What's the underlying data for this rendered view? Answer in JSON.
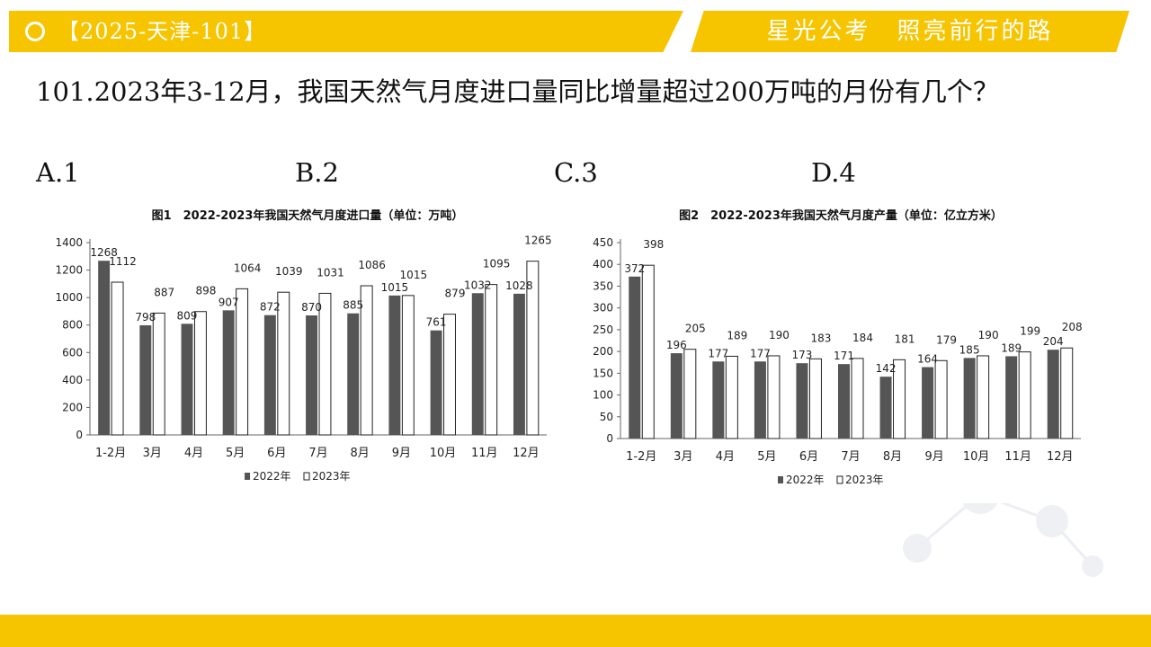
{
  "header": {
    "tag": "【2025-天津-101】",
    "slogan": "星光公考　照亮前行的路"
  },
  "question": {
    "text": "101.2023年3-12月，我国天然气月度进口量同比增量超过200万吨的月份有几个？",
    "options": [
      "A.1",
      "B.2",
      "C.3",
      "D.4"
    ]
  },
  "colors": {
    "accent": "#f7c400",
    "bar_2022": "#555555",
    "bar_2023": "#ffffff"
  },
  "chart_data": [
    {
      "type": "bar",
      "title": "图1　2022-2023年我国天然气月度进口量（单位：万吨）",
      "categories": [
        "1-2月",
        "3月",
        "4月",
        "5月",
        "6月",
        "7月",
        "8月",
        "9月",
        "10月",
        "11月",
        "12月"
      ],
      "series": [
        {
          "name": "2022年",
          "values": [
            1268,
            798,
            809,
            907,
            872,
            870,
            885,
            1015,
            761,
            1032,
            1028
          ]
        },
        {
          "name": "2023年",
          "values": [
            1112,
            887,
            898,
            1064,
            1039,
            1031,
            1086,
            1015,
            879,
            1095,
            1265
          ]
        }
      ],
      "yticks": [
        0,
        200,
        400,
        600,
        800,
        1000,
        1200,
        1400
      ],
      "ylim": [
        0,
        1400
      ],
      "legend": "bottom",
      "grid": false
    },
    {
      "type": "bar",
      "title": "图2　2022-2023年我国天然气月度产量（单位：亿立方米）",
      "categories": [
        "1-2月",
        "3月",
        "4月",
        "5月",
        "6月",
        "7月",
        "8月",
        "9月",
        "10月",
        "11月",
        "12月"
      ],
      "series": [
        {
          "name": "2022年",
          "values": [
            372,
            196,
            177,
            177,
            173,
            171,
            142,
            164,
            185,
            189,
            204
          ]
        },
        {
          "name": "2023年",
          "values": [
            398,
            205,
            189,
            190,
            183,
            184,
            181,
            179,
            190,
            199,
            208
          ]
        }
      ],
      "yticks": [
        0,
        50,
        100,
        150,
        200,
        250,
        300,
        350,
        400,
        450
      ],
      "ylim": [
        0,
        450
      ],
      "legend": "bottom",
      "grid": false
    }
  ]
}
